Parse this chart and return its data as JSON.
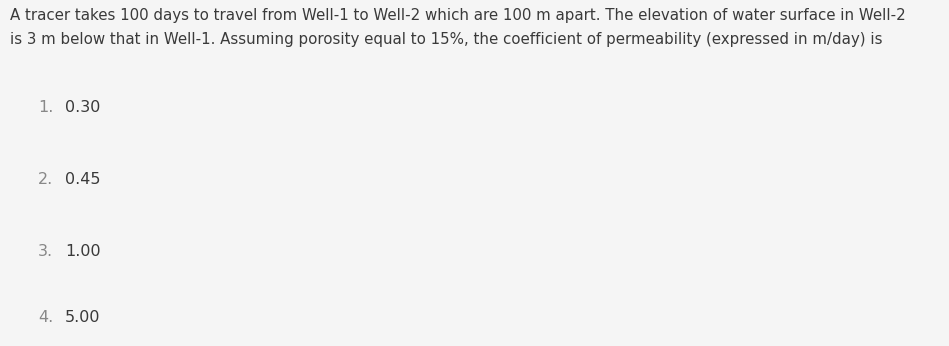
{
  "background_color": "#f5f5f5",
  "option_bg_light": "#f5f5f5",
  "option_bg_dark": "#eeeeee",
  "text_color": "#3a3a3a",
  "question_text_line1": "A tracer takes 100 days to travel from Well-1 to Well-2 which are 100 m apart. The elevation of water surface in Well-2",
  "question_text_line2": "is 3 m below that in Well-1. Assuming porosity equal to 15%, the coefficient of permeability (expressed in m/day) is",
  "options": [
    {
      "number": "1.",
      "value": "0.30"
    },
    {
      "number": "2.",
      "value": "0.45"
    },
    {
      "number": "3.",
      "value": "1.00"
    },
    {
      "number": "4.",
      "value": "5.00"
    }
  ],
  "font_size_question": 10.8,
  "font_size_options": 11.5,
  "option_number_color": "#888888",
  "option_value_color": "#3a3a3a",
  "fig_width": 9.49,
  "fig_height": 3.46,
  "dpi": 100
}
